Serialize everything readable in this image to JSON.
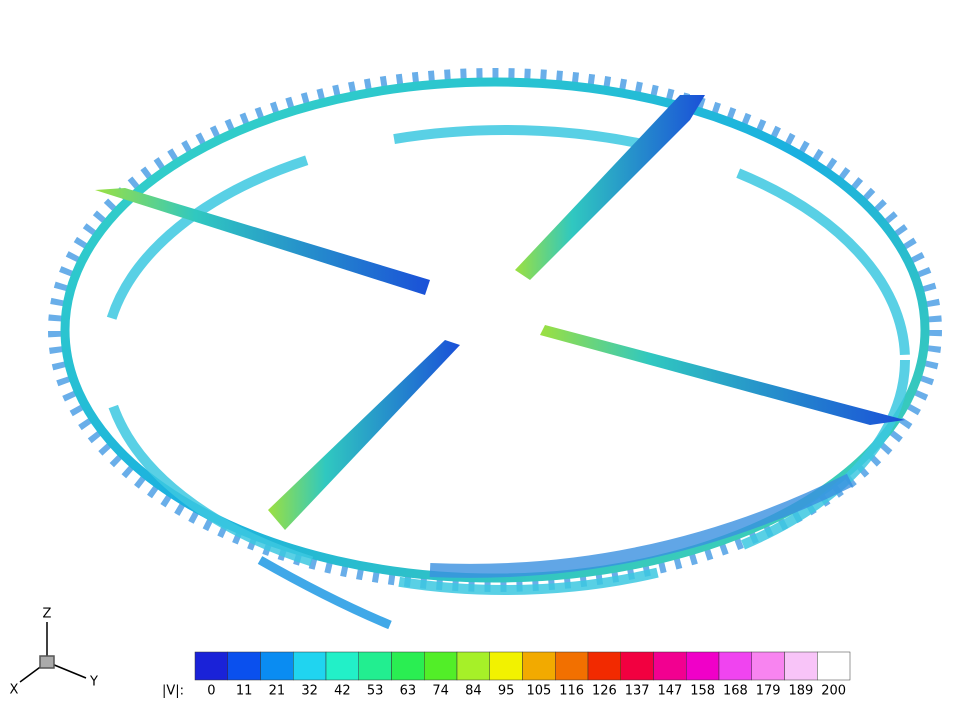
{
  "axes_triad": {
    "z": "Z",
    "x": "X",
    "y": "Y"
  },
  "colorbar": {
    "label": "|V|:",
    "ticks": [
      0,
      11,
      21,
      32,
      42,
      53,
      63,
      74,
      84,
      95,
      105,
      116,
      126,
      137,
      147,
      158,
      168,
      179,
      189,
      200
    ],
    "colors": [
      "#1a22d8",
      "#0a50ee",
      "#0a8cf2",
      "#20d4f0",
      "#22f0c8",
      "#22ee90",
      "#2aee52",
      "#52ee28",
      "#a6f028",
      "#f2f200",
      "#f2aa00",
      "#f27000",
      "#f22a00",
      "#f20040",
      "#f20090",
      "#f000c8",
      "#f044f0",
      "#f884f0",
      "#f8c4f8",
      "#ffffff"
    ]
  }
}
